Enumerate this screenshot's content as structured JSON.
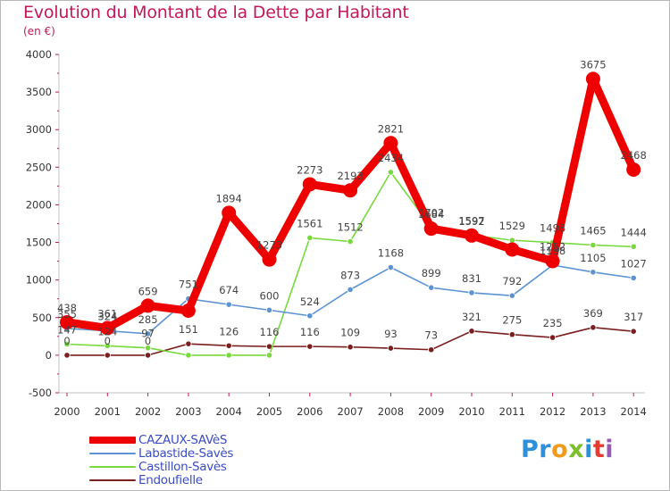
{
  "title": "Evolution du Montant de la Dette par Habitant",
  "unit": "(en €)",
  "logo": {
    "letters": [
      "P",
      "r",
      "o",
      "x",
      "i",
      "t",
      "i"
    ],
    "colors": [
      "#2f8fd8",
      "#2f8fd8",
      "#f29a1b",
      "#7bbf2a",
      "#2f8fd8",
      "#e63c2f",
      "#9b59b6"
    ]
  },
  "chart_data": {
    "type": "line",
    "title": "Evolution du Montant de la Dette par Habitant",
    "ylabel": "(en €)",
    "xlabel": "",
    "ylim": [
      -500,
      4000
    ],
    "yticks": [
      "-500",
      "0",
      "500",
      "1000",
      "1500",
      "2000",
      "2500",
      "3000",
      "3500",
      "4000"
    ],
    "x": [
      "2000",
      "2001",
      "2002",
      "2003",
      "2004",
      "2005",
      "2006",
      "2007",
      "2008",
      "2009",
      "2010",
      "2011",
      "2012",
      "2013",
      "2014"
    ],
    "grid": false,
    "legend_position": "bottom-left",
    "series": [
      {
        "name": "CAZAUX-SAVèS",
        "color": "#ee0000",
        "values": [
          438,
          361,
          659,
          592,
          1894,
          1273,
          2273,
          2193,
          2821,
          1684,
          1592,
          1406,
          1252,
          3675,
          2468
        ]
      },
      {
        "name": "Labastide-Savès",
        "color": "#5b93d3",
        "values": [
          355,
          324,
          285,
          751,
          674,
          600,
          524,
          873,
          1168,
          899,
          831,
          792,
          1198,
          1105,
          1027
        ]
      },
      {
        "name": "Castillon-Savès",
        "color": "#77d93b",
        "values": [
          147,
          124,
          97,
          0,
          0,
          0,
          1561,
          1512,
          2434,
          1702,
          1597,
          1529,
          1498,
          1465,
          1444
        ]
      },
      {
        "name": "Endoufielle",
        "color": "#7a1f1f",
        "values": [
          0,
          0,
          0,
          151,
          126,
          116,
          116,
          109,
          93,
          73,
          321,
          275,
          235,
          369,
          317
        ]
      }
    ],
    "data_labels": [
      [
        "438",
        "361",
        "659",
        "",
        "1894",
        "1273",
        "2273",
        "2193",
        "2821",
        "1684",
        "1592",
        "",
        "1252",
        "3675",
        "2468"
      ],
      [
        "355",
        "324",
        "285",
        "751",
        "674",
        "600",
        "524",
        "873",
        "1168",
        "899",
        "831",
        "792",
        "1198",
        "1105",
        "1027"
      ],
      [
        "147",
        "124",
        "97",
        "",
        "",
        "",
        "1561",
        "1512",
        "2434",
        "1702",
        "1597",
        "1529",
        "1498",
        "1465",
        "1444"
      ],
      [
        "0",
        "0",
        "0",
        "151",
        "126",
        "116",
        "116",
        "109",
        "93",
        "73",
        "321",
        "275",
        "235",
        "369",
        "317"
      ]
    ]
  }
}
